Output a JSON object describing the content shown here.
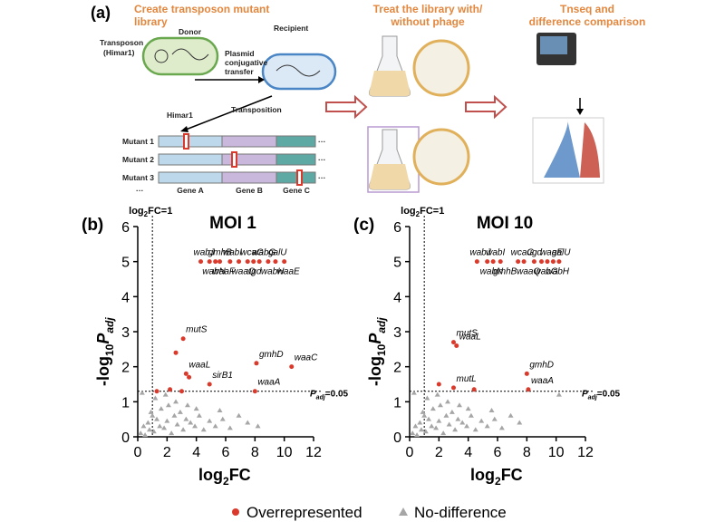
{
  "panel_a": {
    "label": "(a)",
    "step1_title": [
      "Create transposon mutant",
      "library"
    ],
    "donor": "Donor",
    "recipient": "Recipient",
    "transposon": [
      "Transposon",
      "(Himar1)"
    ],
    "transfer": [
      "Plasmid",
      "conjugative",
      "transfer"
    ],
    "transposition": "Transposition",
    "himar": "Himar1",
    "mutants": [
      "Mutant 1",
      "Mutant 2",
      "Mutant 3"
    ],
    "ellipsis": "···",
    "genes": [
      "Gene A",
      "Gene B",
      "Gene C"
    ],
    "step2_title": [
      "Treat the library with/",
      "without phage"
    ],
    "step3_title": [
      "Tnseq and",
      "difference comparison"
    ]
  },
  "chart_data": [
    {
      "type": "scatter",
      "panel": "(b)",
      "title": "MOI 1",
      "x_label": [
        "log",
        "2",
        "FC"
      ],
      "y_label": [
        "-log",
        "10",
        "P",
        "adj"
      ],
      "xlim": [
        0,
        12
      ],
      "xticks": [
        0,
        2,
        4,
        6,
        8,
        10,
        12
      ],
      "ylim": [
        0,
        6
      ],
      "yticks": [
        0,
        1,
        2,
        3,
        4,
        5,
        6
      ],
      "vline": 1,
      "vline_label": [
        "log",
        "2",
        "FC=1"
      ],
      "hline": 1.3,
      "hline_label": [
        "P",
        "adj",
        "=0.05"
      ],
      "series": [
        {
          "name": "No-difference",
          "color": "#a6a6a6",
          "marker": "triangle",
          "x": [
            0.2,
            0.4,
            0.5,
            0.7,
            0.8,
            1.0,
            1.1,
            1.3,
            1.5,
            1.6,
            1.8,
            2.0,
            2.1,
            2.3,
            2.5,
            2.7,
            2.9,
            3.1,
            3.3,
            3.6,
            3.9,
            4.2,
            4.5,
            4.9,
            5.3,
            5.8,
            6.3,
            6.9,
            7.5,
            8.2,
            1.2,
            0.9,
            1.9,
            2.6,
            3.4,
            4.0,
            5.6,
            0.3
          ],
          "y": [
            0.1,
            0.3,
            0.05,
            0.4,
            0.2,
            0.6,
            0.15,
            0.5,
            0.3,
            0.8,
            0.25,
            0.45,
            0.9,
            0.1,
            0.6,
            0.35,
            0.7,
            0.2,
            0.5,
            0.4,
            0.3,
            0.6,
            0.2,
            0.45,
            0.3,
            0.5,
            0.25,
            0.6,
            0.4,
            0.3,
            1.1,
            0.7,
            1.2,
            1.0,
            0.9,
            0.8,
            0.75,
            1.25
          ]
        },
        {
          "name": "Overrepresented",
          "color": "#d93a2b",
          "marker": "circle",
          "x": [
            4.3,
            4.9,
            5.3,
            5.6,
            6.3,
            6.9,
            7.5,
            7.9,
            8.3,
            8.9,
            9.4,
            10.0,
            3.1,
            2.6,
            3.3,
            3.5,
            4.9,
            8.1,
            10.5,
            8.0,
            1.3,
            2.2,
            3.0
          ],
          "y": [
            5,
            5,
            5,
            5,
            5,
            5,
            5,
            5,
            5,
            5,
            5,
            5,
            2.8,
            2.4,
            1.8,
            1.7,
            1.5,
            2.1,
            2.0,
            1.3,
            1.3,
            1.35,
            1.3
          ],
          "labels": [
            "wabJ",
            "wabN",
            "gmhB",
            "waaF",
            "wabI",
            "waaQ",
            "wcaG",
            "ugd",
            "wabG",
            "wabH",
            "galU",
            "waaE",
            "mutS",
            null,
            "waaL",
            null,
            "sirB1",
            "gmhD",
            "waaC",
            "waaA",
            null,
            null,
            null
          ]
        }
      ]
    },
    {
      "type": "scatter",
      "panel": "(c)",
      "title": "MOI 10",
      "x_label": [
        "log",
        "2",
        "FC"
      ],
      "y_label": [
        "-log",
        "10",
        "P",
        "adj"
      ],
      "xlim": [
        0,
        12
      ],
      "xticks": [
        0,
        2,
        4,
        6,
        8,
        10,
        12
      ],
      "ylim": [
        0,
        6
      ],
      "yticks": [
        0,
        1,
        2,
        3,
        4,
        5,
        6
      ],
      "vline": 1,
      "vline_label": [
        "log",
        "2",
        "FC=1"
      ],
      "hline": 1.3,
      "hline_label": [
        "P",
        "adj",
        "=0.05"
      ],
      "series": [
        {
          "name": "No-difference",
          "color": "#a6a6a6",
          "marker": "triangle",
          "x": [
            0.2,
            0.4,
            0.5,
            0.7,
            0.8,
            1.0,
            1.1,
            1.3,
            1.5,
            1.6,
            1.8,
            2.0,
            2.1,
            2.3,
            2.5,
            2.7,
            2.9,
            3.1,
            3.3,
            3.6,
            3.9,
            4.2,
            4.5,
            4.9,
            5.3,
            5.8,
            6.3,
            6.9,
            7.5,
            10.2,
            1.2,
            0.9,
            1.9,
            2.6,
            3.4,
            4.0,
            5.6,
            0.3
          ],
          "y": [
            0.1,
            0.3,
            0.05,
            0.4,
            0.2,
            0.6,
            0.15,
            0.5,
            0.3,
            0.8,
            0.25,
            0.45,
            0.9,
            0.1,
            0.6,
            0.35,
            0.7,
            0.2,
            0.5,
            0.4,
            0.3,
            0.6,
            0.2,
            0.45,
            0.3,
            0.5,
            0.25,
            0.6,
            0.4,
            1.2,
            1.1,
            0.7,
            1.2,
            1.0,
            0.9,
            0.8,
            0.75,
            1.25
          ]
        },
        {
          "name": "Overrepresented",
          "color": "#d93a2b",
          "marker": "circle",
          "x": [
            4.6,
            5.3,
            5.7,
            6.2,
            7.4,
            7.8,
            8.5,
            9.0,
            9.4,
            9.8,
            10.2,
            3.0,
            3.2,
            8.0,
            3.0,
            8.1,
            2.0,
            4.4
          ],
          "y": [
            5,
            5,
            5,
            5,
            5,
            5,
            5,
            5,
            5,
            5,
            5,
            2.7,
            2.6,
            1.8,
            1.4,
            1.35,
            1.5,
            1.35
          ],
          "labels": [
            "wabJ",
            "wabN",
            "wabI",
            "gmhB",
            "wcaG",
            "waaQ",
            "ugd",
            "wabG",
            "waaE",
            "wabH",
            "galU",
            "mutS",
            "waaL",
            "gmhD",
            "mutL",
            "waaA",
            null,
            null
          ]
        }
      ]
    }
  ]
}
